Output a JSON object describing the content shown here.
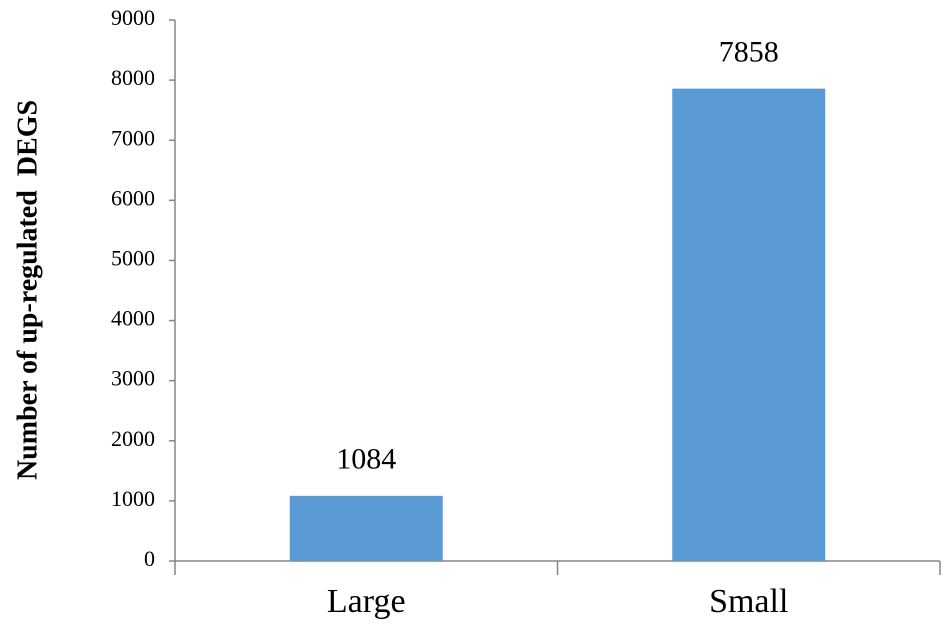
{
  "chart_data": {
    "type": "bar",
    "ylabel": "Number of up-regulated  DEGS",
    "categories": [
      "Large",
      "Small"
    ],
    "values": [
      1084,
      7858
    ],
    "color": "#5b9bd5",
    "ylim": [
      0,
      9000
    ],
    "yticks": [
      0,
      1000,
      2000,
      3000,
      4000,
      5000,
      6000,
      7000,
      8000,
      9000
    ],
    "grid": false
  }
}
